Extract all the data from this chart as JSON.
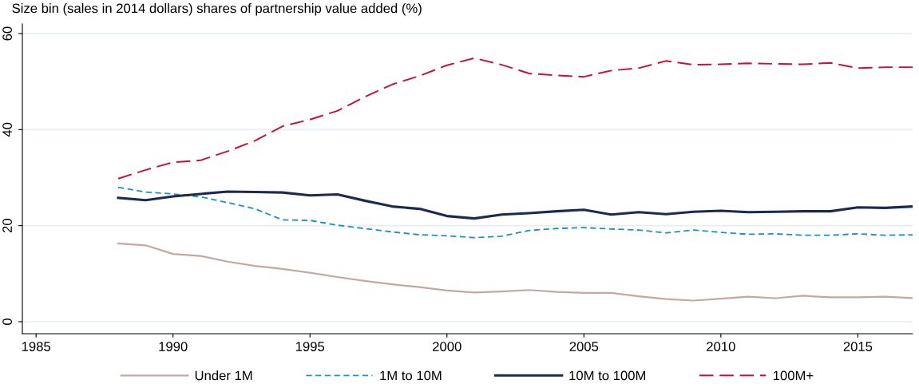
{
  "chart_data": {
    "type": "line",
    "title": "Size bin (sales in 2014 dollars) shares of partnership value added (%)",
    "x": [
      1988,
      1989,
      1990,
      1991,
      1992,
      1993,
      1994,
      1995,
      1996,
      1997,
      1998,
      1999,
      2000,
      2001,
      2002,
      2003,
      2004,
      2005,
      2006,
      2007,
      2008,
      2009,
      2010,
      2011,
      2012,
      2013,
      2014,
      2015,
      2016,
      2017
    ],
    "series": [
      {
        "name": "Under 1M",
        "color": "#c4a8a2",
        "line_style": "solid",
        "values": [
          16.3,
          15.9,
          14.1,
          13.7,
          12.5,
          11.6,
          11.0,
          10.2,
          9.3,
          8.5,
          7.8,
          7.2,
          6.5,
          6.1,
          6.3,
          6.6,
          6.2,
          6.0,
          6.0,
          5.3,
          4.7,
          4.4,
          4.8,
          5.2,
          4.9,
          5.4,
          5.1,
          5.1,
          5.2,
          4.9
        ]
      },
      {
        "name": "1M to 10M",
        "color": "#1a90c6",
        "line_style": "dashed",
        "values": [
          28.0,
          27.0,
          26.6,
          26.0,
          24.8,
          23.5,
          21.2,
          21.1,
          20.1,
          19.4,
          18.7,
          18.1,
          17.9,
          17.5,
          17.8,
          19.0,
          19.4,
          19.6,
          19.3,
          19.1,
          18.5,
          19.1,
          18.6,
          18.2,
          18.3,
          18.0,
          18.0,
          18.3,
          18.0,
          18.1
        ]
      },
      {
        "name": "10M to 100M",
        "color": "#1a2a50",
        "line_style": "solid",
        "values": [
          25.8,
          25.3,
          26.1,
          26.6,
          27.1,
          27.0,
          26.9,
          26.3,
          26.5,
          25.2,
          24.0,
          23.5,
          22.0,
          21.5,
          22.3,
          22.6,
          23.0,
          23.3,
          22.3,
          22.8,
          22.4,
          22.9,
          23.1,
          22.8,
          22.9,
          23.0,
          23.0,
          23.8,
          23.7,
          24.0
        ]
      },
      {
        "name": "100M+",
        "color": "#c8103e",
        "line_style": "longdash",
        "values": [
          29.8,
          31.6,
          33.2,
          33.6,
          35.5,
          37.7,
          40.7,
          42.1,
          43.9,
          46.8,
          49.4,
          51.2,
          53.4,
          54.9,
          53.5,
          51.7,
          51.3,
          51.0,
          52.3,
          52.8,
          54.3,
          53.5,
          53.6,
          53.8,
          53.7,
          53.6,
          53.9,
          52.8,
          53.0,
          53.0
        ]
      }
    ],
    "xlim": [
      1984.5,
      2017
    ],
    "xticks": [
      1985,
      1990,
      1995,
      2000,
      2005,
      2010,
      2015
    ],
    "ylim": [
      -2.5,
      62
    ],
    "yticks": [
      0,
      20,
      40,
      60
    ],
    "grid": "y",
    "legend": "bottom",
    "marker": "none"
  }
}
